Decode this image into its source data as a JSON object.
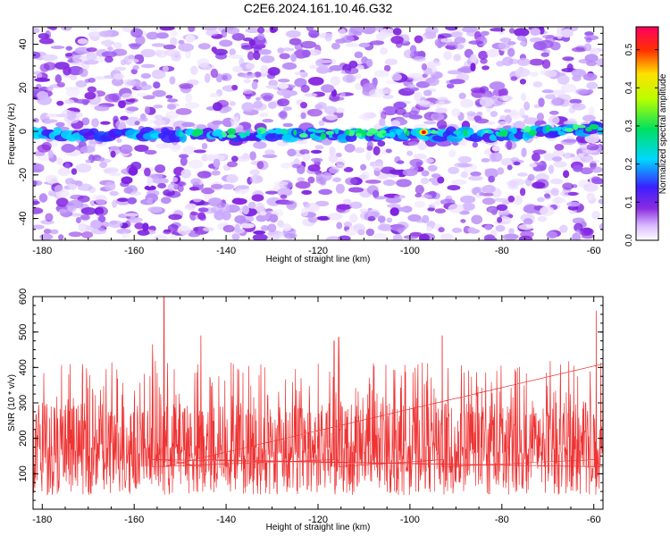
{
  "title": "C2E6.2024.161.10.46.G32",
  "chart_data": [
    {
      "type": "heatmap",
      "xlabel": "Height of straight line (km)",
      "ylabel": "Frequency (Hz)",
      "xlim": [
        -182,
        -58
      ],
      "ylim": [
        -50,
        48
      ],
      "xticks": [
        -180,
        -160,
        -140,
        -120,
        -100,
        -80,
        -60
      ],
      "yticks": [
        -40,
        -20,
        0,
        20,
        40
      ],
      "colorbar": {
        "label": "Normalized spectral amplitude",
        "range": [
          0,
          0.56
        ],
        "ticks": [
          0.0,
          0.1,
          0.2,
          0.3,
          0.4,
          0.5
        ]
      },
      "signal_band": {
        "frequency_hz": 0,
        "note_peak_x_km": -97,
        "peak_amplitude": 0.55
      },
      "colors": {
        "background_speckle": "#8a2be2",
        "peak": "#ff0000"
      }
    },
    {
      "type": "line",
      "xlabel": "Height of straight line (km)",
      "ylabel": "SNR (10 * v/v)",
      "xlim": [
        -182,
        -58
      ],
      "ylim": [
        0,
        600
      ],
      "xticks": [
        -180,
        -160,
        -140,
        -120,
        -100,
        -80,
        -60
      ],
      "yticks": [
        100,
        200,
        300,
        400,
        500,
        600
      ],
      "series_color": "#ee3333",
      "typical_range": [
        80,
        300
      ],
      "spikes": [
        {
          "x": -153.5,
          "y": 600
        },
        {
          "x": -145.5,
          "y": 490
        },
        {
          "x": -59.5,
          "y": 560
        },
        {
          "x": -93,
          "y": 490
        },
        {
          "x": -115.5,
          "y": 485
        },
        {
          "x": -116.5,
          "y": 475
        },
        {
          "x": -156,
          "y": 465
        },
        {
          "x": -58,
          "y": 410
        }
      ]
    }
  ]
}
